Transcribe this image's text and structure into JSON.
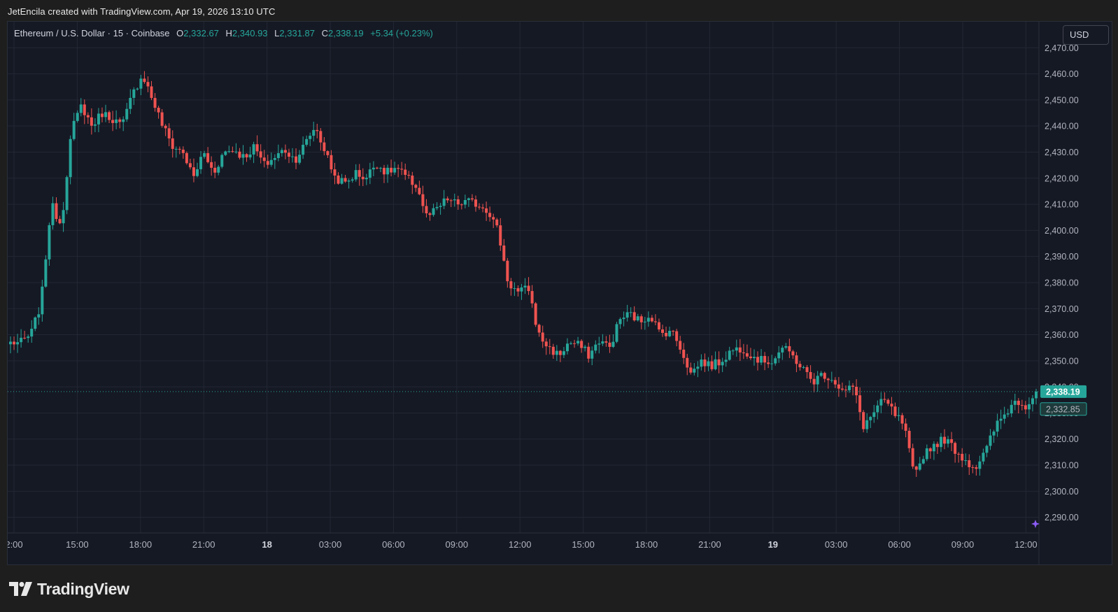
{
  "header": {
    "credit": "JetEncila created with TradingView.com, Apr 19, 2026 13:10 UTC"
  },
  "legend": {
    "symbol": "Ethereum / U.S. Dollar · 15 · Coinbase",
    "o_label": "O",
    "o_value": "2,332.67",
    "h_label": "H",
    "h_value": "2,340.93",
    "l_label": "L",
    "l_value": "2,331.87",
    "c_label": "C",
    "c_value": "2,338.19",
    "change": "+5.34 (+0.23%)"
  },
  "currency_button": "USD",
  "brand": {
    "name": "TradingView",
    "icon": "tradingview-logo-icon"
  },
  "colors": {
    "up": "#26a69a",
    "down": "#ef5350",
    "background": "#151924",
    "grid": "#232734",
    "text": "#b2b5be",
    "accent_marker": "#8b5cf6"
  },
  "chart_data": {
    "type": "candlestick",
    "symbol": "ETH/USD",
    "interval_minutes": 15,
    "exchange": "Coinbase",
    "ylim": [
      2284,
      2480
    ],
    "y_ticks": [
      2290,
      2300,
      2310,
      2320,
      2330,
      2340,
      2350,
      2360,
      2370,
      2380,
      2390,
      2400,
      2410,
      2420,
      2430,
      2440,
      2450,
      2460,
      2470
    ],
    "y_tick_labels": [
      "2,290.00",
      "2,300.00",
      "2,310.00",
      "2,320.00",
      "2,330.00",
      "2,340.00",
      "2,350.00",
      "2,360.00",
      "2,370.00",
      "2,380.00",
      "2,390.00",
      "2,400.00",
      "2,410.00",
      "2,420.00",
      "2,430.00",
      "2,440.00",
      "2,450.00",
      "2,460.00",
      "2,470.00"
    ],
    "x_tick_labels": [
      {
        "label": "2:00"
      },
      {
        "label": "15:00"
      },
      {
        "label": "18:00"
      },
      {
        "label": "21:00"
      },
      {
        "label": "18",
        "day": true
      },
      {
        "label": "03:00"
      },
      {
        "label": "06:00"
      },
      {
        "label": "09:00"
      },
      {
        "label": "12:00"
      },
      {
        "label": "15:00"
      },
      {
        "label": "18:00"
      },
      {
        "label": "21:00"
      },
      {
        "label": "19",
        "day": true
      },
      {
        "label": "03:00"
      },
      {
        "label": "06:00"
      },
      {
        "label": "09:00"
      },
      {
        "label": "12:00"
      }
    ],
    "last_price": 2338.19,
    "last_price_label": "2,338.19",
    "second_price": 2332.85,
    "second_price_label": "2,332.85",
    "grid": true,
    "anchors": [
      2357,
      2357,
      2360,
      2372,
      2410,
      2402,
      2438,
      2448,
      2440,
      2445,
      2443,
      2440,
      2452,
      2460,
      2450,
      2440,
      2432,
      2430,
      2420,
      2430,
      2422,
      2430,
      2431,
      2428,
      2432,
      2425,
      2428,
      2431,
      2427,
      2433,
      2440,
      2430,
      2420,
      2418,
      2422,
      2420,
      2426,
      2422,
      2424,
      2420,
      2417,
      2405,
      2408,
      2412,
      2410,
      2411,
      2410,
      2408,
      2400,
      2380,
      2376,
      2378,
      2360,
      2355,
      2352,
      2357,
      2356,
      2352,
      2358,
      2355,
      2366,
      2368,
      2365,
      2368,
      2360,
      2362,
      2355,
      2345,
      2350,
      2348,
      2350,
      2354,
      2355,
      2352,
      2350,
      2350,
      2355,
      2352,
      2347,
      2342,
      2345,
      2343,
      2338,
      2340,
      2325,
      2330,
      2335,
      2330,
      2325,
      2305,
      2315,
      2318,
      2320,
      2316,
      2312,
      2309,
      2315,
      2325,
      2330,
      2335,
      2333,
      2338
    ]
  }
}
